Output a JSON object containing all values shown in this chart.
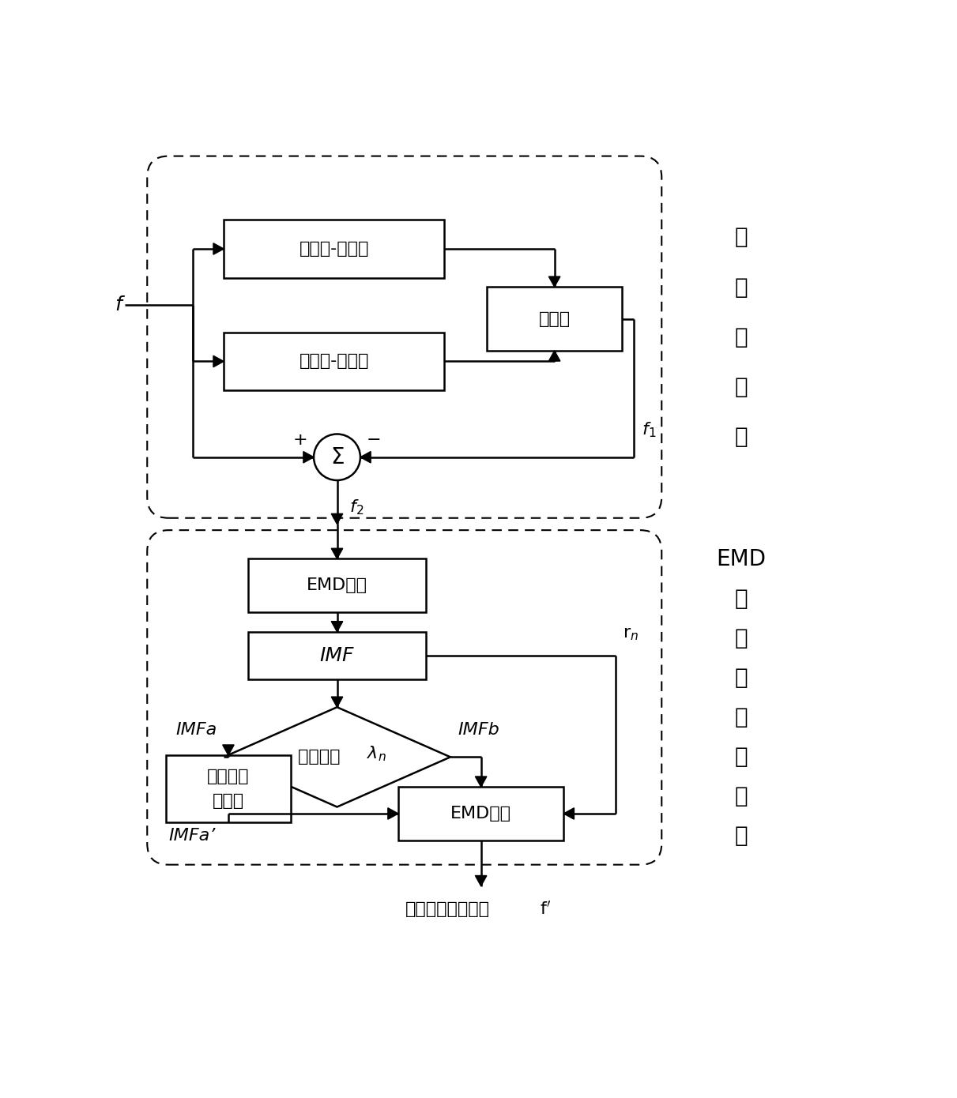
{
  "bg_color": "#ffffff",
  "text_color": "#000000",
  "font_size": 16,
  "side_font_size": 20,
  "box1_label": "形态开-闭运算",
  "box2_label": "形态闭-开运算",
  "box3_label": "求平均",
  "box4_label": "EMD分解",
  "box5_label": "IMF",
  "diamond_label_cn": "评估系数 ",
  "diamond_label_math": "$\\lambda_{n}$",
  "box6_line1": "类小波阈",
  "box6_line2": "值去噪",
  "box7_label": "EMD重构",
  "label_f": "f",
  "label_f1": "f$_{1}$",
  "label_f2": "f$_{2}$",
  "label_plus": "+",
  "label_minus": "−",
  "label_sigma": "Σ",
  "label_IMFa": "IMFa",
  "label_IMFb": "IMFb",
  "label_IMFa_prime": "IMFa’",
  "label_rn": "r$_{n}$",
  "label_output_cn": "去噪后的心电信号",
  "label_output_math": "f$^{\\prime}$",
  "side_label1": [
    "形",
    "态",
    "学",
    "滤",
    "波"
  ],
  "side_label2": [
    "EMD",
    "类",
    "小",
    "波",
    "阈",
    "值",
    "去",
    "噪"
  ]
}
